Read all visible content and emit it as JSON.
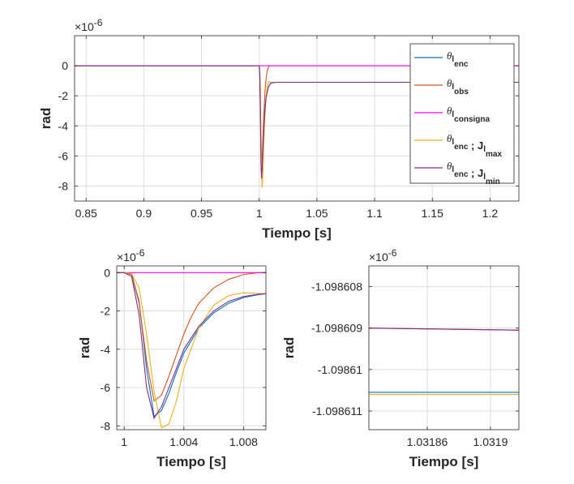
{
  "chart_data": [
    {
      "type": "line",
      "xlabel": "Tiempo [s]",
      "ylabel": "rad",
      "exponent_label": "×10^-6",
      "xlim": [
        0.84,
        1.225
      ],
      "ylim": [
        -9,
        2
      ],
      "xticks": [
        0.85,
        0.9,
        0.95,
        1,
        1.05,
        1.1,
        1.15,
        1.2
      ],
      "xtick_labels": [
        "0.85",
        "0.9",
        "0.95",
        "1",
        "1.05",
        "1.1",
        "1.15",
        "1.2"
      ],
      "yticks": [
        0,
        -2,
        -4,
        -6,
        -8
      ],
      "ytick_labels": [
        "0",
        "-2",
        "-4",
        "-6",
        "-8"
      ],
      "grid": true,
      "legend_placement": "top-right",
      "series": [
        {
          "name": "θl_enc",
          "color": "#0072BD",
          "x": [
            0.84,
            1.0,
            1.0005,
            1.001,
            1.0015,
            1.002,
            1.0025,
            1.003,
            1.004,
            1.005,
            1.006,
            1.008,
            1.01,
            1.015,
            1.225
          ],
          "y": [
            0,
            0,
            -0.5,
            -2.5,
            -5.5,
            -7.4,
            -6.8,
            -5.8,
            -4.0,
            -2.8,
            -2.0,
            -1.4,
            -1.15,
            -1.1,
            -1.1
          ]
        },
        {
          "name": "θl_obs",
          "color": "#D95319",
          "x": [
            0.84,
            1.0,
            1.0005,
            1.001,
            1.0015,
            1.002,
            1.0025,
            1.003,
            1.004,
            1.005,
            1.006,
            1.007,
            1.008,
            1.009,
            1.225
          ],
          "y": [
            0,
            0,
            -0.5,
            -2.5,
            -5.0,
            -6.6,
            -6.3,
            -5.2,
            -3.2,
            -1.7,
            -0.8,
            -0.3,
            -0.1,
            0,
            0
          ]
        },
        {
          "name": "θl_consigna",
          "color": "#FF00FF",
          "x": [
            0.84,
            1.225
          ],
          "y": [
            0,
            0
          ]
        },
        {
          "name": "θl_enc ; Jl_max",
          "color": "#EDB120",
          "x": [
            0.84,
            1.0,
            1.0005,
            1.001,
            1.0015,
            1.002,
            1.0025,
            1.003,
            1.004,
            1.005,
            1.006,
            1.007,
            1.008,
            1.01,
            1.015,
            1.225
          ],
          "y": [
            0,
            0,
            -0.3,
            -1.5,
            -4.0,
            -6.5,
            -8.1,
            -7.6,
            -5.2,
            -3.2,
            -2.0,
            -1.3,
            -1.05,
            -1.1,
            -1.1,
            -1.1
          ]
        },
        {
          "name": "θl_enc ; Jl_min",
          "color": "#7E2F8E",
          "x": [
            0.84,
            1.0,
            1.0005,
            1.001,
            1.0015,
            1.002,
            1.0025,
            1.003,
            1.004,
            1.005,
            1.006,
            1.008,
            1.01,
            1.015,
            1.225
          ],
          "y": [
            0,
            0,
            -0.6,
            -3.0,
            -6.5,
            -7.5,
            -6.9,
            -5.8,
            -4.1,
            -2.9,
            -2.1,
            -1.4,
            -1.15,
            -1.1,
            -1.1
          ]
        }
      ]
    },
    {
      "type": "line",
      "xlabel": "Tiempo [s]",
      "ylabel": "rad",
      "exponent_label": "×10^-6",
      "xlim": [
        0.9995,
        1.0095
      ],
      "ylim": [
        -8.2,
        0.35
      ],
      "xticks": [
        1,
        1.004,
        1.008
      ],
      "xtick_labels": [
        "1",
        "1.004",
        "1.008"
      ],
      "yticks": [
        0,
        -2,
        -4,
        -6,
        -8
      ],
      "ytick_labels": [
        "0",
        "-2",
        "-4",
        "-6",
        "-8"
      ],
      "grid": true,
      "series": [
        {
          "name": "θl_enc",
          "color": "#0072BD",
          "x": [
            0.9995,
            1.0,
            1.0005,
            1.001,
            1.0015,
            1.002,
            1.0025,
            1.003,
            1.0035,
            1.004,
            1.005,
            1.006,
            1.007,
            1.008,
            1.009,
            1.0095
          ],
          "y": [
            0,
            0,
            -0.1,
            -1.5,
            -5.0,
            -7.5,
            -7.2,
            -6.3,
            -5.2,
            -4.2,
            -2.9,
            -2.1,
            -1.6,
            -1.3,
            -1.15,
            -1.1
          ]
        },
        {
          "name": "θl_obs",
          "color": "#D95319",
          "x": [
            0.9995,
            1.0,
            1.0005,
            1.001,
            1.0015,
            1.002,
            1.0025,
            1.003,
            1.0035,
            1.004,
            1.0045,
            1.005,
            1.006,
            1.007,
            1.008,
            1.009,
            1.0095
          ],
          "y": [
            0,
            0,
            -0.1,
            -1.6,
            -4.6,
            -6.7,
            -6.4,
            -5.4,
            -4.3,
            -3.2,
            -2.3,
            -1.6,
            -0.8,
            -0.35,
            -0.1,
            0,
            0
          ]
        },
        {
          "name": "θl_consigna",
          "color": "#FF00FF",
          "x": [
            0.9995,
            1.0095
          ],
          "y": [
            0,
            0
          ]
        },
        {
          "name": "θl_enc ; Jl_max",
          "color": "#EDB120",
          "x": [
            0.9995,
            1.0,
            1.0005,
            1.001,
            1.0015,
            1.002,
            1.0025,
            1.003,
            1.0035,
            1.004,
            1.005,
            1.006,
            1.007,
            1.008,
            1.009,
            1.0095
          ],
          "y": [
            0,
            0,
            -0.05,
            -0.8,
            -3.2,
            -6.2,
            -8.1,
            -7.9,
            -6.7,
            -5.0,
            -2.9,
            -1.7,
            -1.2,
            -1.05,
            -1.08,
            -1.1
          ]
        },
        {
          "name": "θl_enc ; Jl_min",
          "color": "#7E2F8E",
          "x": [
            0.9995,
            1.0,
            1.0005,
            1.001,
            1.0015,
            1.002,
            1.0025,
            1.003,
            1.0035,
            1.004,
            1.005,
            1.006,
            1.007,
            1.008,
            1.009,
            1.0095
          ],
          "y": [
            0,
            0,
            -0.2,
            -2.2,
            -6.0,
            -7.6,
            -7.0,
            -6.0,
            -5.0,
            -4.0,
            -2.8,
            -2.0,
            -1.5,
            -1.25,
            -1.13,
            -1.1
          ]
        }
      ]
    },
    {
      "type": "line",
      "xlabel": "Tiempo [s]",
      "ylabel": "rad",
      "exponent_label": "×10^-6",
      "xlim": [
        1.031823,
        1.031918
      ],
      "ylim": [
        -1.09861145,
        -1.0986075
      ],
      "xticks": [
        1.03186,
        1.0319
      ],
      "xtick_labels": [
        "1.03186",
        "1.0319"
      ],
      "yticks": [
        -1.098608,
        -1.098609,
        -1.09861,
        -1.098611
      ],
      "ytick_labels": [
        "-1.098608",
        "-1.098609",
        "-1.09861",
        "-1.098611"
      ],
      "grid": true,
      "series": [
        {
          "name": "θl_enc",
          "color": "#0072BD",
          "x": [
            1.031823,
            1.031918
          ],
          "y": [
            -1.09861055,
            -1.09861055
          ]
        },
        {
          "name": "θl_obs",
          "color": "#D95319",
          "x": [
            1.031823,
            1.031918
          ],
          "y": [
            -1.098609,
            -1.09860905
          ]
        },
        {
          "name": "θl_enc ; Jl_max",
          "color": "#EDB120",
          "x": [
            1.031823,
            1.031918
          ],
          "y": [
            -1.0986106,
            -1.0986106
          ]
        },
        {
          "name": "θl_enc ; Jl_min",
          "color": "#7E2F8E",
          "x": [
            1.031823,
            1.031918
          ],
          "y": [
            -1.098609,
            -1.09860905
          ]
        }
      ]
    }
  ]
}
